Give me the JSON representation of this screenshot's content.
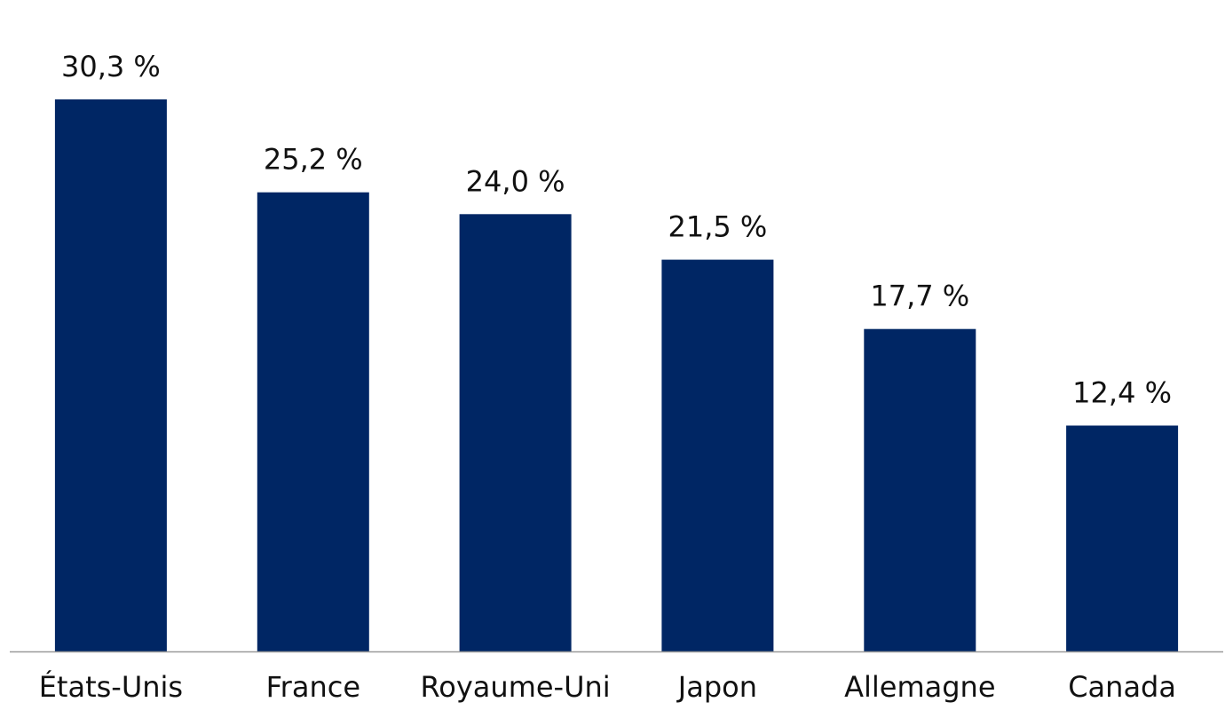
{
  "chart_data": {
    "type": "bar",
    "categories": [
      "États-Unis",
      "France",
      "Royaume-Uni",
      "Japon",
      "Allemagne",
      "Canada"
    ],
    "values": [
      30.3,
      25.2,
      24.0,
      21.5,
      17.7,
      12.4
    ],
    "data_labels": [
      "30,3 %",
      "25,2 %",
      "24,0 %",
      "21,5 %",
      "17,7 %",
      "12,4 %"
    ],
    "title": "",
    "xlabel": "",
    "ylabel": "",
    "ylim": [
      0,
      30.3
    ],
    "grid": false,
    "legend": "none",
    "bar_color": "#002664",
    "axis_color": "#999999"
  }
}
